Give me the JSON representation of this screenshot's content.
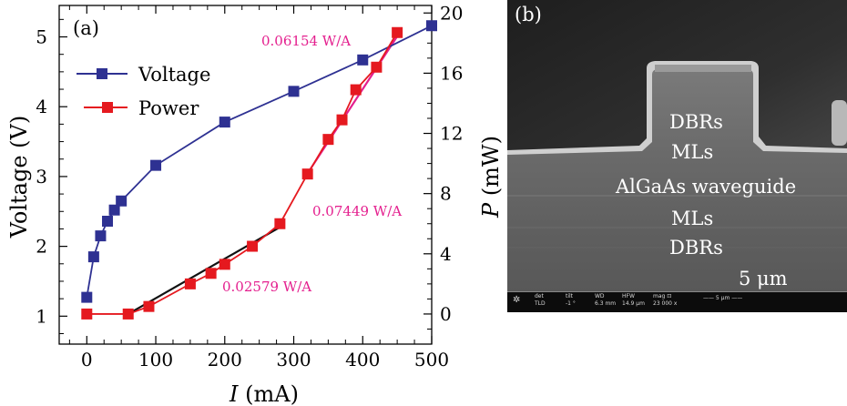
{
  "chart_data": {
    "type": "line",
    "panel_label": "(a)",
    "xlabel_var": "I",
    "xlabel_unit": " (mA)",
    "ylabel_left": "Voltage (V)",
    "ylabel_right_var": "P",
    "ylabel_right_unit": " (mW)",
    "xlim": [
      -40,
      500
    ],
    "ylim_left": [
      0.6,
      5.45
    ],
    "ylim_right": [
      -2.0,
      20.5
    ],
    "x_ticks": [
      0,
      100,
      200,
      300,
      400,
      500
    ],
    "x_tick_labels": [
      "0",
      "100",
      "200",
      "300",
      "400",
      "500"
    ],
    "y_left_ticks": [
      1,
      2,
      3,
      4,
      5
    ],
    "y_left_tick_labels": [
      "1",
      "2",
      "3",
      "4",
      "5"
    ],
    "y_right_ticks": [
      0,
      4,
      8,
      12,
      16,
      20
    ],
    "y_right_tick_labels": [
      "0",
      "4",
      "8",
      "12",
      "16",
      "20"
    ],
    "legend": [
      {
        "label": "Voltage",
        "color": "#2e3192"
      },
      {
        "label": "Power",
        "color": "#e5191f"
      }
    ],
    "series": [
      {
        "name": "Voltage",
        "axis": "left",
        "color": "#2e3192",
        "x": [
          0,
          10,
          20,
          30,
          40,
          50,
          100,
          200,
          300,
          400,
          500
        ],
        "y": [
          1.27,
          1.85,
          2.15,
          2.36,
          2.52,
          2.65,
          3.16,
          3.78,
          4.22,
          4.67,
          5.16
        ]
      },
      {
        "name": "Power",
        "axis": "right",
        "color": "#e5191f",
        "x": [
          0,
          60,
          90,
          150,
          180,
          200,
          240,
          280,
          320,
          350,
          370,
          390,
          420,
          450
        ],
        "y": [
          0.0,
          0.0,
          0.5,
          2.0,
          2.7,
          3.3,
          4.5,
          6.0,
          9.3,
          11.6,
          12.9,
          14.9,
          16.4,
          18.7
        ]
      }
    ],
    "fit_lines": [
      {
        "color": "#111111",
        "x": [
          60,
          285
        ],
        "y": [
          0.0,
          5.9
        ]
      },
      {
        "color": "#e41f8e",
        "x": [
          318,
          455
        ],
        "y": [
          9.2,
          18.8
        ]
      }
    ],
    "annotations": [
      {
        "text": "0.06154 W/A",
        "color": "#e41f8e"
      },
      {
        "text": "0.07449 W/A",
        "color": "#e41f8e"
      },
      {
        "text": "0.02579 W/A",
        "color": "#e41f8e"
      }
    ]
  },
  "sem": {
    "panel_label": "(b)",
    "layers": [
      "DBRs",
      "MLs",
      "AlGaAs waveguide",
      "MLs",
      "DBRs"
    ],
    "scale_label": "5 μm",
    "info_bar": [
      {
        "head": "det",
        "val": "TLD"
      },
      {
        "head": "tilt",
        "val": "-1 °"
      },
      {
        "head": "WD",
        "val": "6.3 mm"
      },
      {
        "head": "HFW",
        "val": "14.9 μm"
      },
      {
        "head": "mag ⊡",
        "val": "23 000 x"
      },
      {
        "head": "—— 5 μm ——",
        "val": ""
      }
    ],
    "colors": {
      "background": "#5a5a5a",
      "edge": "#eeeeee",
      "top": "#2b2b2b"
    }
  }
}
